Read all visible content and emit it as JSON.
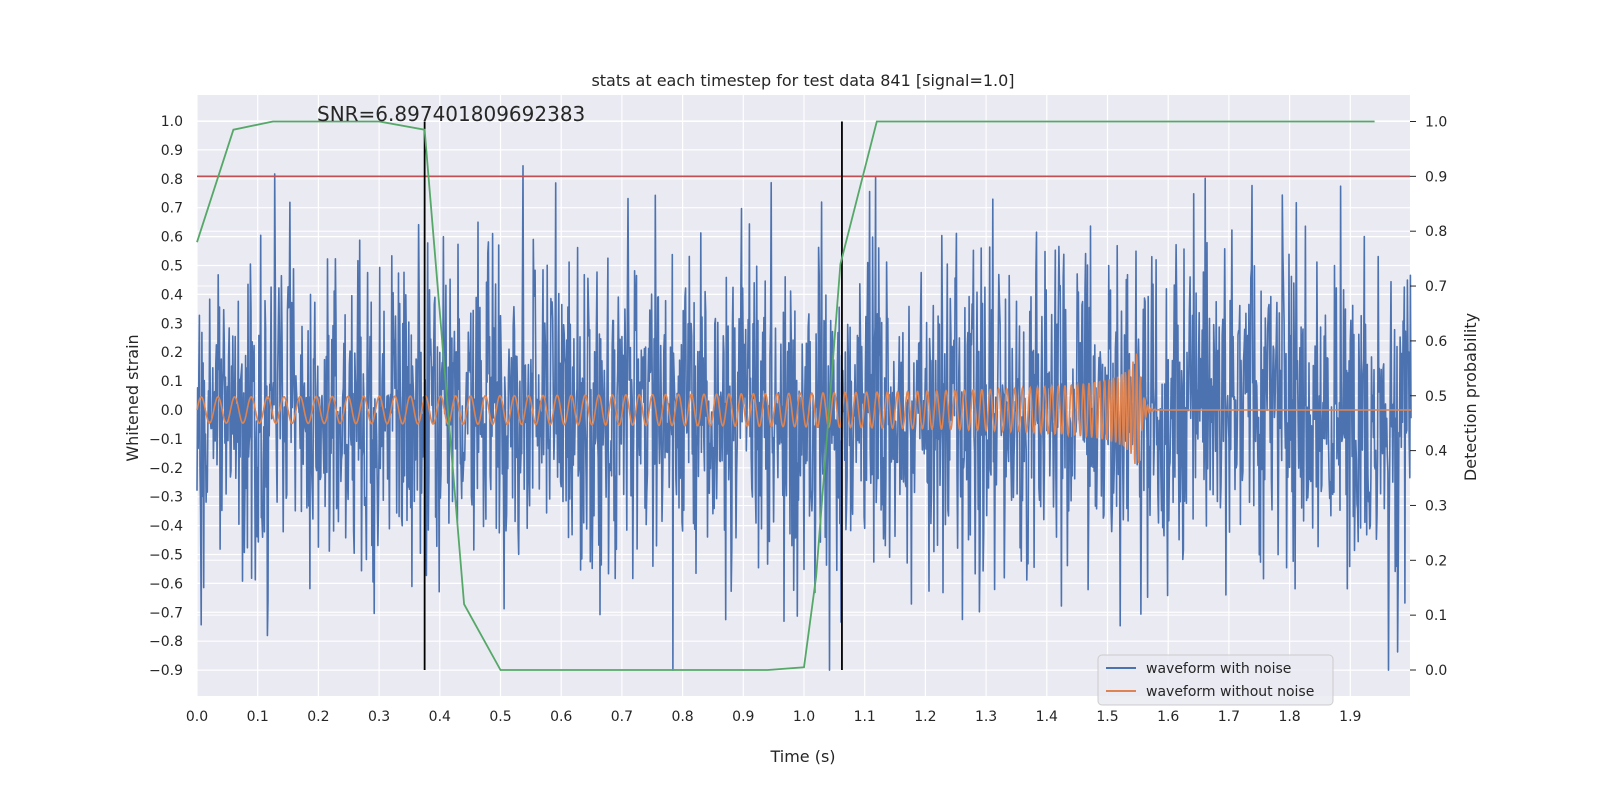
{
  "chart_data": {
    "type": "line",
    "title": "stats at each timestep for test data 841 [signal=1.0]",
    "xlabel": "Time (s)",
    "ylabel": "Whitened strain",
    "y2label": "Detection probability",
    "annotation": "SNR=6.897401809692383",
    "xlim": [
      0.0,
      2.0
    ],
    "ylim": [
      -1.0,
      1.05
    ],
    "y2lim": [
      -0.05,
      1.05
    ],
    "x_ticks": [
      "0.0",
      "0.1",
      "0.2",
      "0.3",
      "0.4",
      "0.5",
      "0.6",
      "0.7",
      "0.8",
      "0.9",
      "1.0",
      "1.1",
      "1.2",
      "1.3",
      "1.4",
      "1.5",
      "1.6",
      "1.7",
      "1.8",
      "1.9"
    ],
    "y_ticks": [
      "1.0",
      "0.9",
      "0.8",
      "0.7",
      "0.6",
      "0.5",
      "0.4",
      "0.3",
      "0.2",
      "0.1",
      "0.0",
      "−0.1",
      "−0.2",
      "−0.3",
      "−0.4",
      "−0.5",
      "−0.6",
      "−0.7",
      "−0.8",
      "−0.9"
    ],
    "y2_ticks": [
      "1.0",
      "0.9",
      "0.8",
      "0.7",
      "0.6",
      "0.5",
      "0.4",
      "0.3",
      "0.2",
      "0.1",
      "0.0"
    ],
    "grid": true,
    "legend_position": "lower-right",
    "colors": {
      "noisy": "#4c72b0",
      "clean": "#dd8452",
      "probability": "#55a868",
      "threshold": "#c44e52",
      "vlines": "#000000",
      "background": "#eaeaf2"
    },
    "series": [
      {
        "name": "waveform with noise",
        "note": "dense noisy strain signal sampled across 0–2 s",
        "amplitude_range": [
          -0.9,
          0.99
        ]
      },
      {
        "name": "waveform without noise",
        "note": "chirp signal, amplitude ~0.04 growing to ~0.23 near merger at ~1.55 s, then ringdown to ~0",
        "merger_time": 1.55
      },
      {
        "axis": "right",
        "x": [
          0.0,
          0.06,
          0.125,
          0.3,
          0.375,
          0.44,
          0.5,
          0.94,
          1.0,
          1.02,
          1.06,
          1.12,
          1.94
        ],
        "y": [
          0.78,
          0.985,
          1.0,
          1.0,
          0.985,
          0.12,
          0.0,
          0.0,
          0.005,
          0.17,
          0.74,
          1.0,
          1.0
        ]
      }
    ],
    "threshold_value_y2": 0.9,
    "vertical_lines_x": [
      0.375,
      1.0625
    ],
    "legend": [
      "waveform with noise",
      "waveform without noise"
    ]
  }
}
